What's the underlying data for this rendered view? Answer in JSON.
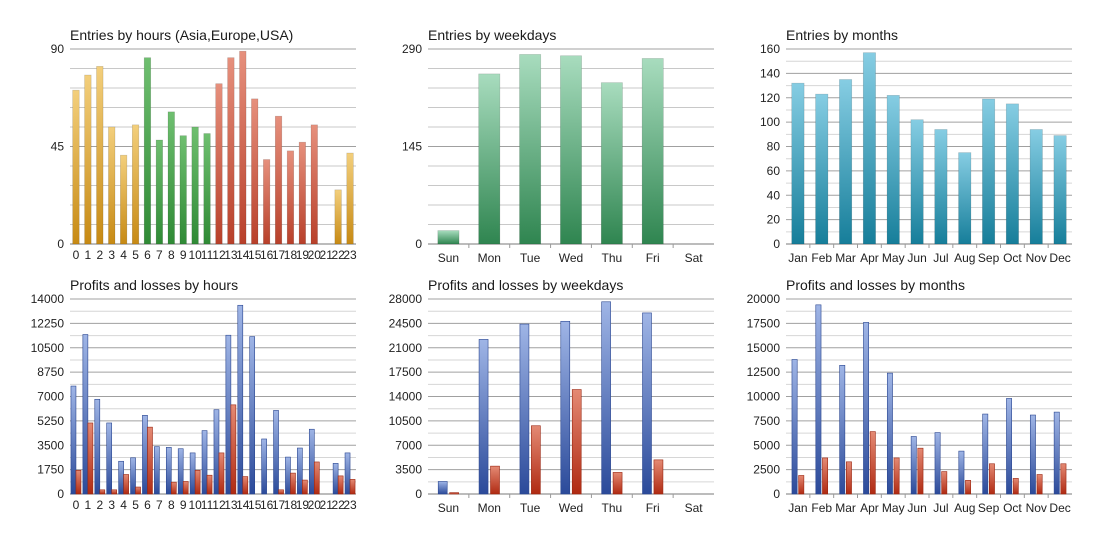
{
  "chart_data": [
    {
      "type": "bar",
      "title": "Entries by hours (Asia,Europe,USA)",
      "categories": [
        "0",
        "1",
        "2",
        "3",
        "4",
        "5",
        "6",
        "7",
        "8",
        "9",
        "10",
        "11",
        "12",
        "13",
        "14",
        "15",
        "16",
        "17",
        "18",
        "19",
        "20",
        "21",
        "22",
        "23"
      ],
      "values": [
        71,
        78,
        82,
        54,
        41,
        55,
        86,
        48,
        61,
        50,
        54,
        51,
        74,
        86,
        89,
        67,
        39,
        59,
        43,
        47,
        55,
        0,
        25,
        42
      ],
      "ylim": [
        0,
        90
      ],
      "yticks": [
        0,
        45,
        90
      ],
      "segments": [
        {
          "from": 0,
          "to": 5,
          "color_top": "#f3cf7c",
          "color_bottom": "#c78a14"
        },
        {
          "from": 6,
          "to": 11,
          "color_top": "#6fbf70",
          "color_bottom": "#2f8a35"
        },
        {
          "from": 12,
          "to": 20,
          "color_top": "#e6907d",
          "color_bottom": "#b8402a"
        },
        {
          "from": 21,
          "to": 23,
          "color_top": "#f3cf7c",
          "color_bottom": "#c78a14"
        }
      ],
      "grid": true
    },
    {
      "type": "bar",
      "title": "Entries by weekdays",
      "categories": [
        "Sun",
        "Mon",
        "Tue",
        "Wed",
        "Thu",
        "Fri",
        "Sat"
      ],
      "values": [
        20,
        253,
        282,
        280,
        240,
        276,
        0
      ],
      "ylim": [
        0,
        290
      ],
      "yticks": [
        0,
        145,
        290
      ],
      "colors": {
        "top": "#a8dcbe",
        "bottom": "#2f8550"
      },
      "grid": true
    },
    {
      "type": "bar",
      "title": "Entries by months",
      "categories": [
        "Jan",
        "Feb",
        "Mar",
        "Apr",
        "May",
        "Jun",
        "Jul",
        "Aug",
        "Sep",
        "Oct",
        "Nov",
        "Dec"
      ],
      "values": [
        132,
        123,
        135,
        157,
        122,
        102,
        94,
        75,
        119,
        115,
        94,
        89
      ],
      "ylim": [
        0,
        160
      ],
      "yticks": [
        0,
        20,
        40,
        60,
        80,
        100,
        120,
        140,
        160
      ],
      "colors": {
        "top": "#86cde3",
        "bottom": "#167e9a"
      },
      "grid": true
    },
    {
      "type": "bar",
      "title": "Profits and losses by hours",
      "categories": [
        "0",
        "1",
        "2",
        "3",
        "4",
        "5",
        "6",
        "7",
        "8",
        "9",
        "10",
        "11",
        "12",
        "13",
        "14",
        "15",
        "16",
        "17",
        "18",
        "19",
        "20",
        "21",
        "22",
        "23"
      ],
      "series": [
        {
          "values": [
            7750,
            11450,
            6800,
            5100,
            2350,
            2600,
            5650,
            3400,
            3350,
            3250,
            2950,
            4550,
            6050,
            11400,
            13550,
            11300,
            3950,
            6000,
            2650,
            3300,
            4650,
            0,
            2200,
            2950
          ],
          "color_top": "#9fb5e6",
          "color_bottom": "#2b4a9a"
        },
        {
          "values": [
            1700,
            5100,
            300,
            300,
            1400,
            500,
            4800,
            0,
            850,
            900,
            1700,
            1350,
            2950,
            6400,
            1250,
            0,
            0,
            300,
            1500,
            1000,
            2300,
            0,
            1300,
            1050
          ],
          "color_top": "#e48a74",
          "color_bottom": "#b02a12"
        }
      ],
      "ylim": [
        0,
        14000
      ],
      "yticks": [
        0,
        1750,
        3500,
        5250,
        7000,
        8750,
        10500,
        12250,
        14000
      ],
      "grid": true
    },
    {
      "type": "bar",
      "title": "Profits and losses by weekdays",
      "categories": [
        "Sun",
        "Mon",
        "Tue",
        "Wed",
        "Thu",
        "Fri",
        "Sat"
      ],
      "series": [
        {
          "values": [
            1800,
            22200,
            24400,
            24800,
            27600,
            26000,
            0
          ],
          "color_top": "#9fb5e6",
          "color_bottom": "#2b4a9a"
        },
        {
          "values": [
            200,
            4000,
            9800,
            15000,
            3100,
            4900,
            0
          ],
          "color_top": "#e48a74",
          "color_bottom": "#b02a12"
        }
      ],
      "ylim": [
        0,
        28000
      ],
      "yticks": [
        0,
        3500,
        7000,
        10500,
        14000,
        17500,
        21000,
        24500,
        28000
      ],
      "grid": true
    },
    {
      "type": "bar",
      "title": "Profits and losses by months",
      "categories": [
        "Jan",
        "Feb",
        "Mar",
        "Apr",
        "May",
        "Jun",
        "Jul",
        "Aug",
        "Sep",
        "Oct",
        "Nov",
        "Dec"
      ],
      "series": [
        {
          "values": [
            13800,
            19400,
            13200,
            17600,
            12400,
            5900,
            6300,
            4400,
            8200,
            9800,
            8100,
            8400
          ],
          "color_top": "#9fb5e6",
          "color_bottom": "#2b4a9a"
        },
        {
          "values": [
            1900,
            3700,
            3300,
            6400,
            3700,
            4700,
            2300,
            1400,
            3100,
            1600,
            2000,
            3100
          ],
          "color_top": "#e48a74",
          "color_bottom": "#b02a12"
        }
      ],
      "ylim": [
        0,
        20000
      ],
      "yticks": [
        0,
        2500,
        5000,
        7500,
        10000,
        12500,
        15000,
        17500,
        20000
      ],
      "grid": true
    }
  ]
}
